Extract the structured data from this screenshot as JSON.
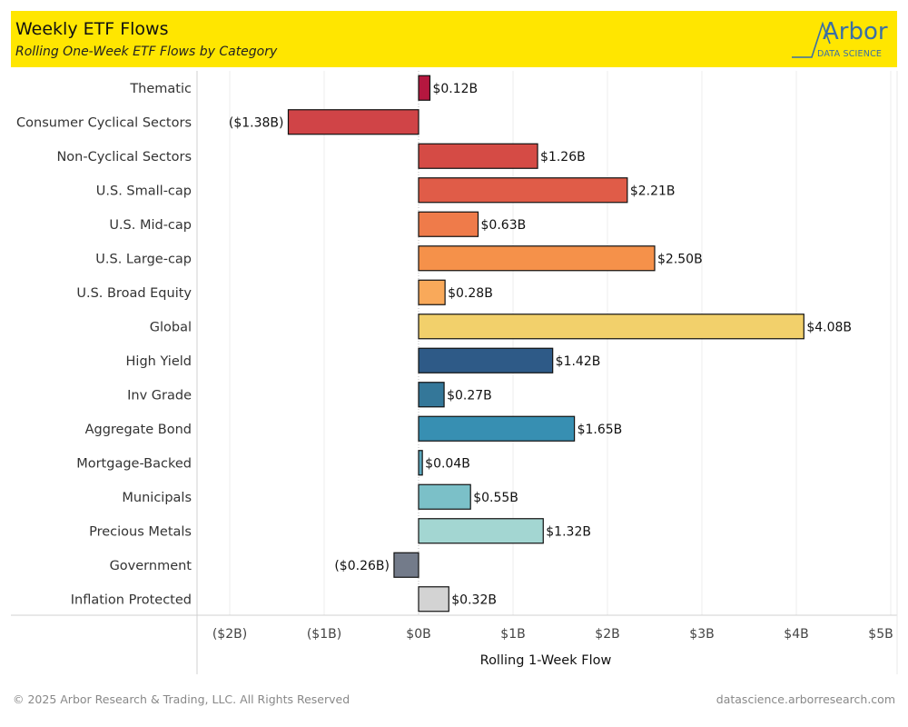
{
  "header": {
    "title": "Weekly ETF Flows",
    "subtitle": "Rolling One-Week ETF Flows by Category",
    "logo_text": "Arbor",
    "logo_subtext": "DATA SCIENCE"
  },
  "footer": {
    "copyright": "© 2025 Arbor Research & Trading, LLC. All Rights Reserved",
    "website": "datascience.arborresearch.com"
  },
  "colors": {
    "header_bg": "#ffe600",
    "logo": "#3a6fa6"
  },
  "chart_data": {
    "type": "bar",
    "orientation": "horizontal",
    "title": "Weekly ETF Flows",
    "subtitle": "Rolling One-Week ETF Flows by Category",
    "xlabel": "Rolling 1-Week Flow",
    "ylabel": "",
    "units": "USD billions",
    "xlim": [
      -2.2,
      5.0
    ],
    "xticks": [
      -2,
      -1,
      0,
      1,
      2,
      3,
      4,
      5
    ],
    "xtick_labels": [
      "($2B)",
      "($1B)",
      "$0B",
      "$1B",
      "$2B",
      "$3B",
      "$4B",
      "$5B"
    ],
    "grid": true,
    "legend": "none",
    "categories": [
      "Thematic",
      "Consumer Cyclical Sectors",
      "Non-Cyclical Sectors",
      "U.S. Small-cap",
      "U.S. Mid-cap",
      "U.S. Large-cap",
      "U.S. Broad Equity",
      "Global",
      "High Yield",
      "Inv Grade",
      "Aggregate Bond",
      "Mortgage-Backed",
      "Municipals",
      "Precious Metals",
      "Government",
      "Inflation Protected"
    ],
    "values": [
      0.12,
      -1.38,
      1.26,
      2.21,
      0.63,
      2.5,
      0.28,
      4.08,
      1.42,
      0.27,
      1.65,
      0.04,
      0.55,
      1.32,
      -0.26,
      0.32
    ],
    "value_labels": [
      "$0.12B",
      "($1.38B)",
      "$1.26B",
      "$2.21B",
      "$0.63B",
      "$2.50B",
      "$0.28B",
      "$4.08B",
      "$1.42B",
      "$0.27B",
      "$1.65B",
      "$0.04B",
      "$0.55B",
      "$1.32B",
      "($0.26B)",
      "$0.32B"
    ],
    "bar_colors": [
      "#b5173f",
      "#d04447",
      "#d54b45",
      "#e05c48",
      "#ef7b4a",
      "#f5914a",
      "#f9a95a",
      "#f2d06b",
      "#2e5a87",
      "#347799",
      "#378fb2",
      "#5aa7bd",
      "#7bc0c8",
      "#a3d6d2",
      "#737b8a",
      "#d3d3d3"
    ]
  }
}
